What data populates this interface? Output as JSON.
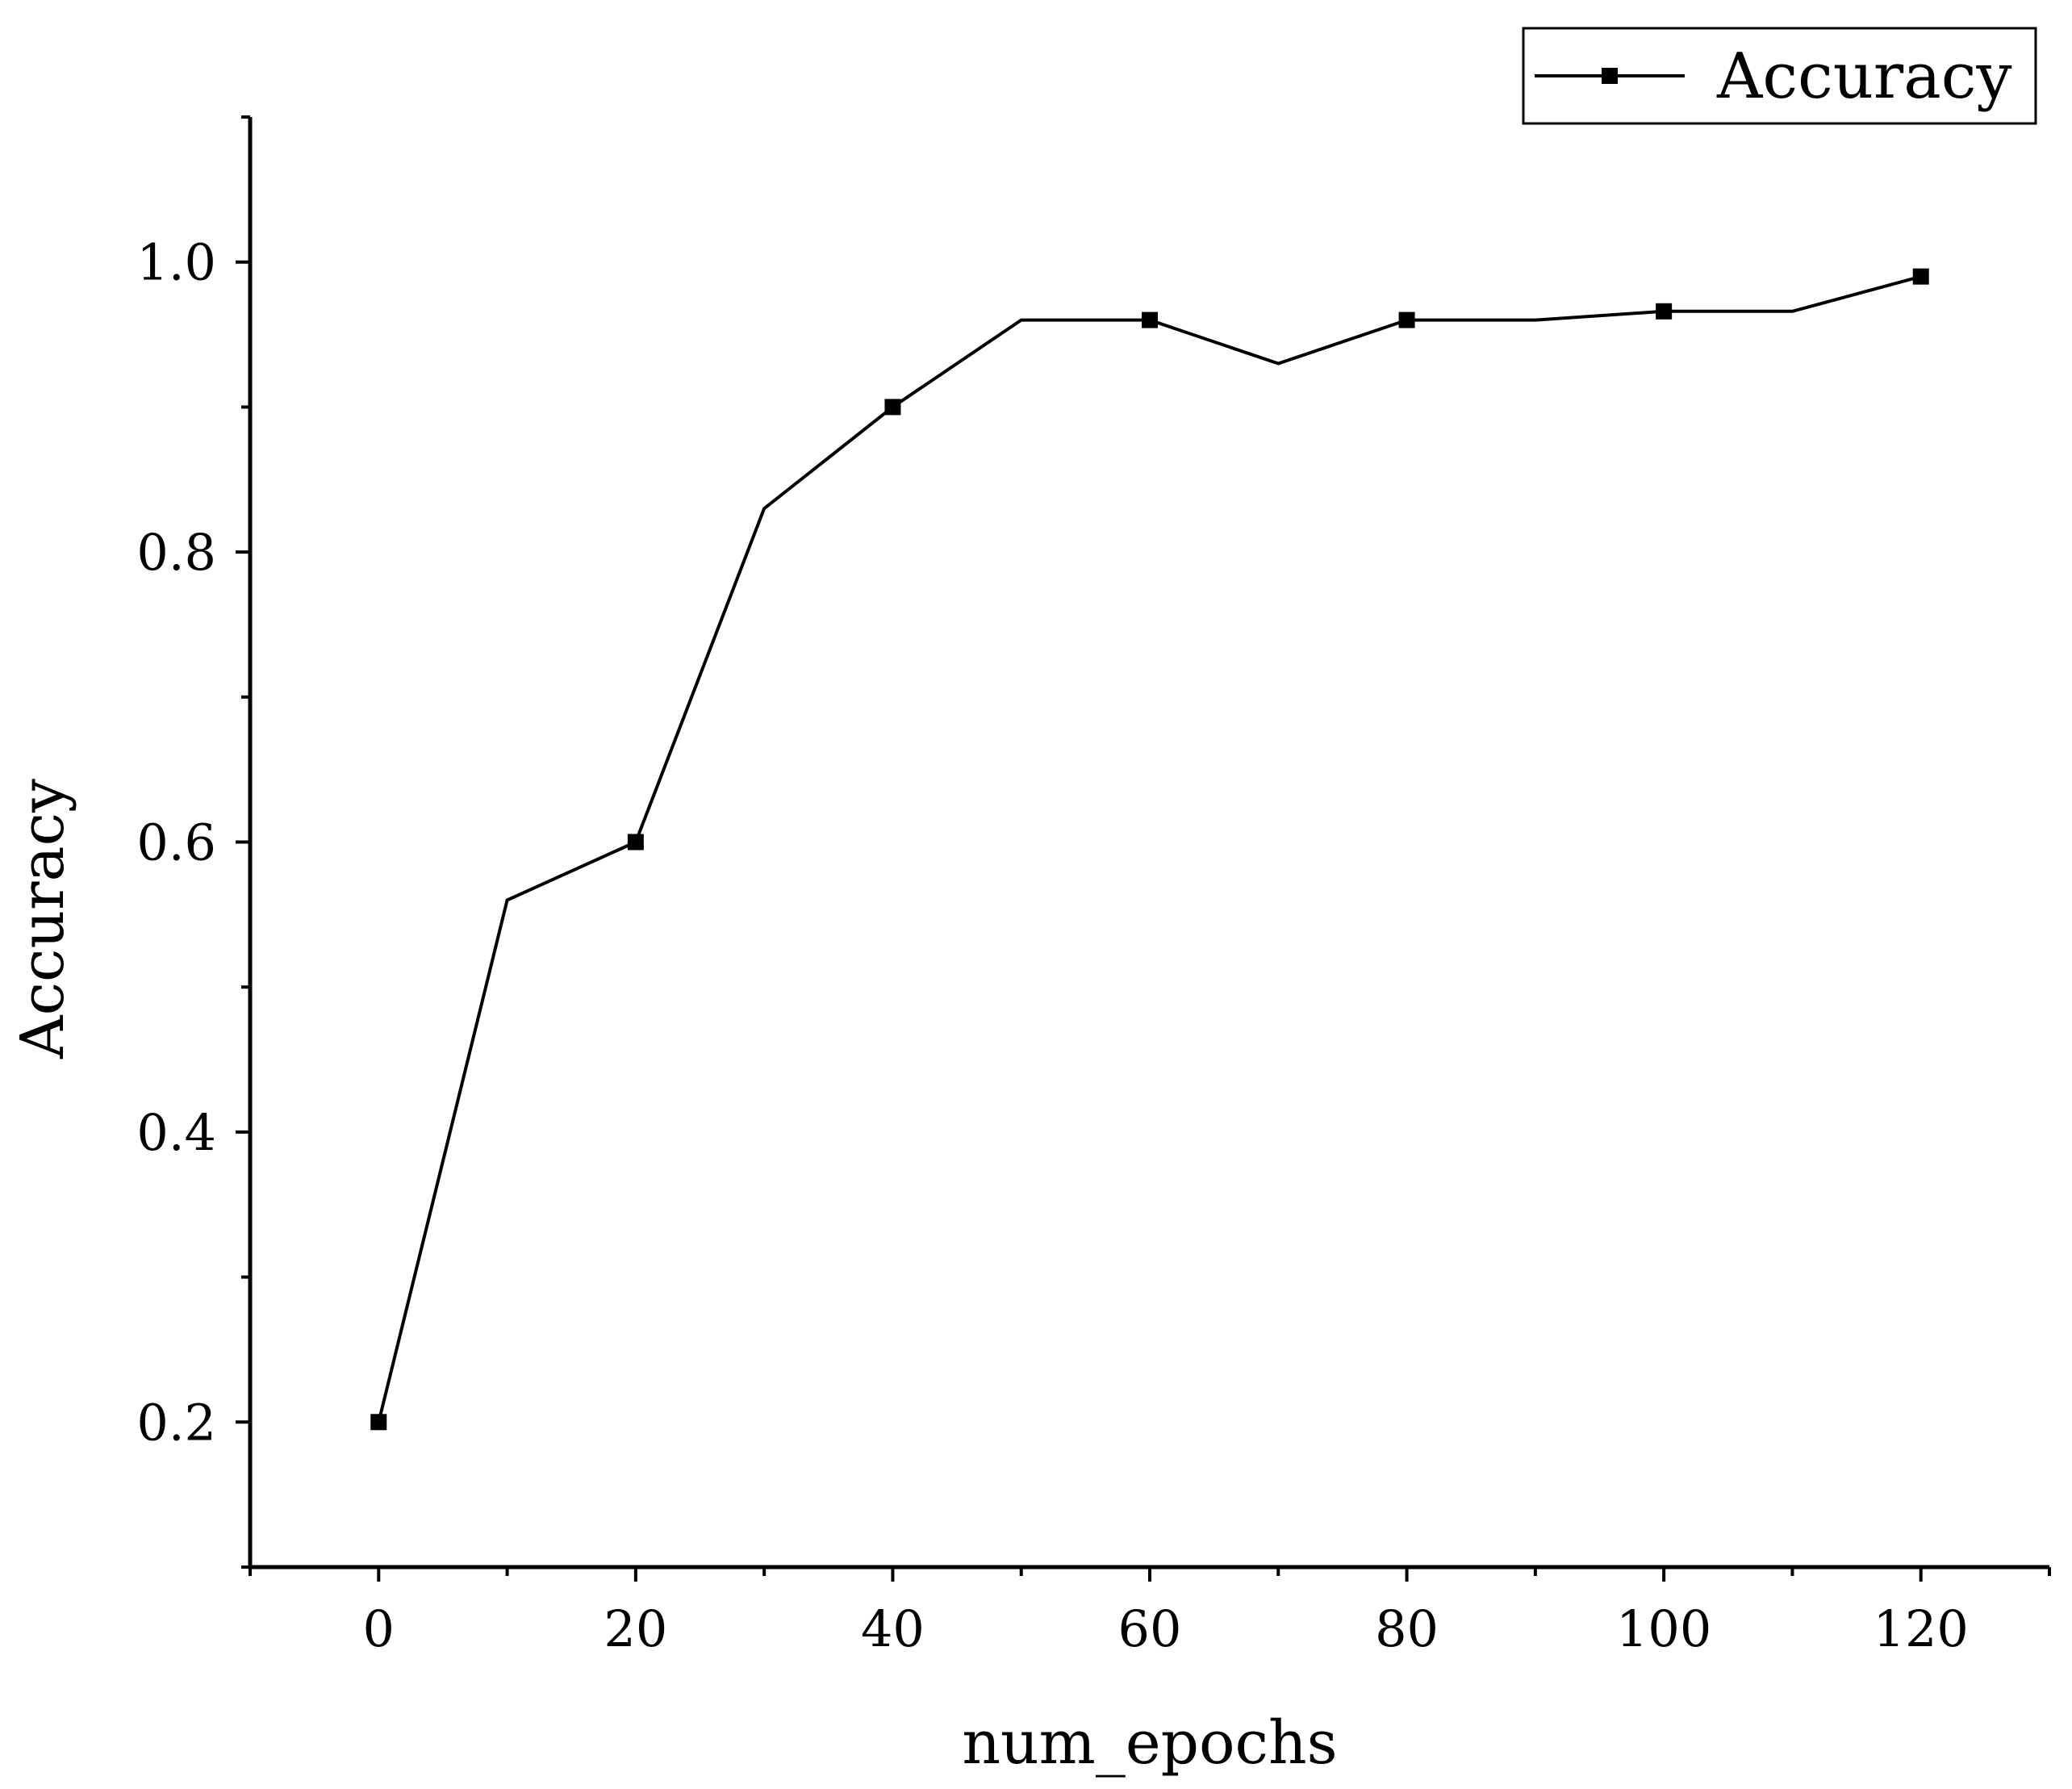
{
  "chart_data": {
    "type": "line",
    "title": "",
    "xlabel": "num_epochs",
    "ylabel": "Accuracy",
    "xlim": [
      -10,
      130
    ],
    "ylim": [
      0.1,
      1.1
    ],
    "x_ticks": [
      0,
      20,
      40,
      60,
      80,
      100,
      120
    ],
    "x_minor_ticks": [
      -10,
      10,
      30,
      50,
      70,
      90,
      110,
      130
    ],
    "y_ticks": [
      0.2,
      0.4,
      0.6,
      0.8,
      1.0
    ],
    "y_tick_labels": [
      "0.2",
      "0.4",
      "0.6",
      "0.8",
      "1.0"
    ],
    "y_minor_ticks": [
      0.1,
      0.3,
      0.5,
      0.7,
      0.9,
      1.1
    ],
    "grid": false,
    "legend_position": "top-right",
    "marker_every": 2,
    "series": [
      {
        "name": "Accuracy",
        "color": "#000000",
        "marker": "square",
        "x": [
          0,
          10,
          20,
          30,
          40,
          50,
          60,
          70,
          80,
          90,
          100,
          110,
          120
        ],
        "y": [
          0.2,
          0.56,
          0.6,
          0.83,
          0.9,
          0.96,
          0.96,
          0.93,
          0.96,
          0.96,
          0.966,
          0.966,
          0.99
        ]
      }
    ]
  }
}
